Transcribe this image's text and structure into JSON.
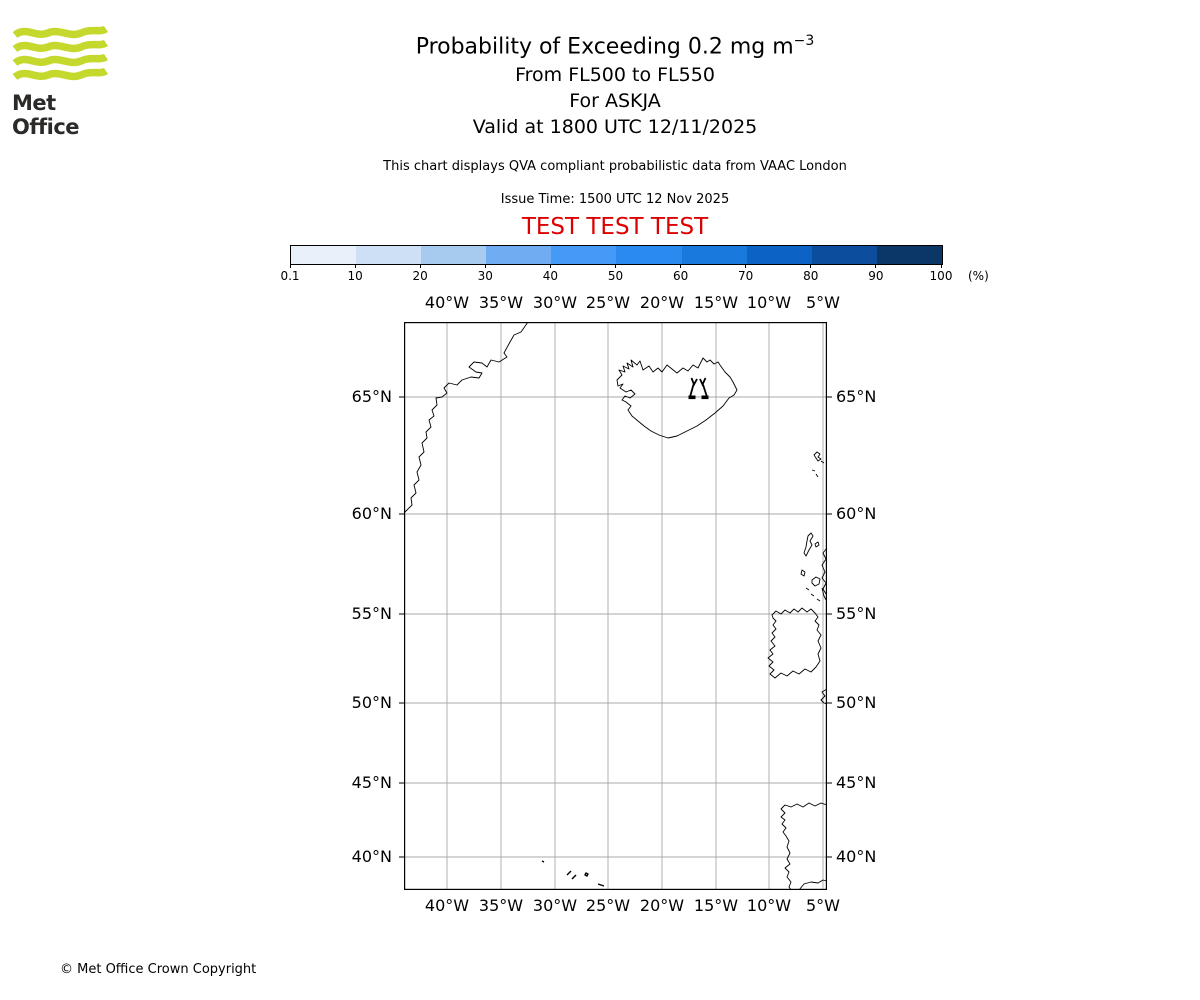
{
  "brand": {
    "name": "Met Office",
    "logo_green": "#c5d82d"
  },
  "header": {
    "title_main": "Probability of Exceeding 0.2 mg m",
    "title_sup": "−3",
    "subtitle_flight_levels": "From FL500 to FL550",
    "subtitle_volcano": "For ASKJA",
    "subtitle_valid": "Valid at 1800 UTC 12/11/2025",
    "disclaimer": "This chart displays QVA compliant probabilistic data from VAAC London",
    "issue_time": "Issue Time: 1500 UTC 12 Nov 2025",
    "test_banner": "TEST TEST TEST",
    "test_banner_color": "#dd0000"
  },
  "colorbar": {
    "tick_labels": [
      "0.1",
      "10",
      "20",
      "30",
      "40",
      "50",
      "60",
      "70",
      "80",
      "90",
      "100"
    ],
    "unit_label": "(%)",
    "segment_colors": [
      "#e8f1fa",
      "#cde0f5",
      "#a6cbee",
      "#70acf2",
      "#449af6",
      "#2a8aef",
      "#1979dd",
      "#0d63c5",
      "#0c4d9e",
      "#0b3766"
    ]
  },
  "map": {
    "lon_labels": [
      "40°W",
      "35°W",
      "30°W",
      "25°W",
      "20°W",
      "15°W",
      "10°W",
      "5°W"
    ],
    "lat_labels": [
      "65°N",
      "60°N",
      "55°N",
      "50°N",
      "45°N",
      "40°N"
    ],
    "gridline_color": "#a9a9a9",
    "coastline_color": "#000000"
  },
  "footer": {
    "copyright": "© Met Office Crown Copyright"
  }
}
